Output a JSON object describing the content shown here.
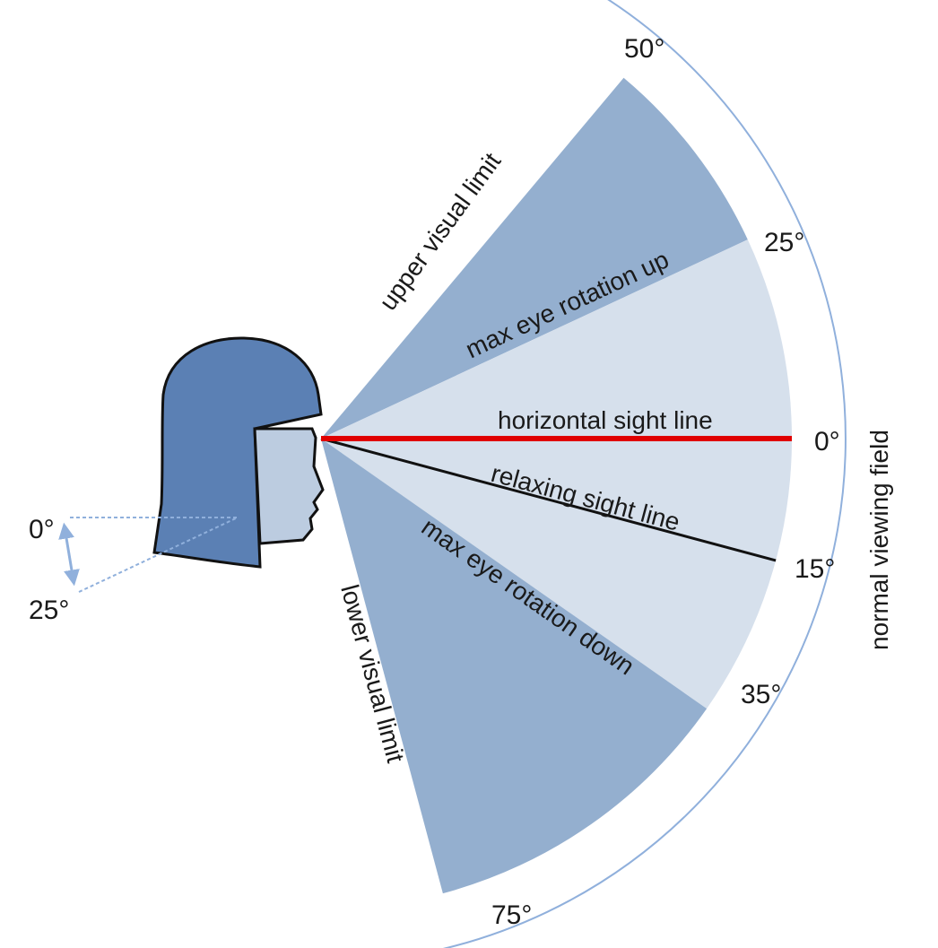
{
  "colors": {
    "outer_zone": "#94afcf",
    "inner_zone": "#d6e0ec",
    "hair": "#5b80b4",
    "face": "#bccce0",
    "outline": "#111111",
    "horizontal_line": "#e00000",
    "arc": "#90b0dc",
    "text": "#1a1a1a"
  },
  "angles": {
    "upper_limit": 50,
    "max_eye_up": 25,
    "horizontal": 0,
    "relaxing": 15,
    "max_eye_down": 35,
    "lower_limit": 75
  },
  "labels": {
    "deg_50": "50°",
    "deg_25": "25°",
    "deg_0": "0°",
    "deg_15": "15°",
    "deg_35": "35°",
    "deg_75": "75°",
    "upper_visual_limit": "upper visual limit",
    "lower_visual_limit": "lower visual limit",
    "max_eye_rotation_up": "max eye rotation up",
    "max_eye_rotation_down": "max eye rotation down",
    "horizontal_sight_line": "horizontal sight line",
    "relaxing_sight_line": "relaxing sight line",
    "normal_viewing_field": "normal viewing field",
    "head_tilt_0": "0°",
    "head_tilt_25": "25°"
  },
  "icons": {
    "head": "head-silhouette-icon",
    "arc_arrow": "double-arrow-arc-icon",
    "tilt_arrow": "vertical-double-arrow-icon"
  }
}
